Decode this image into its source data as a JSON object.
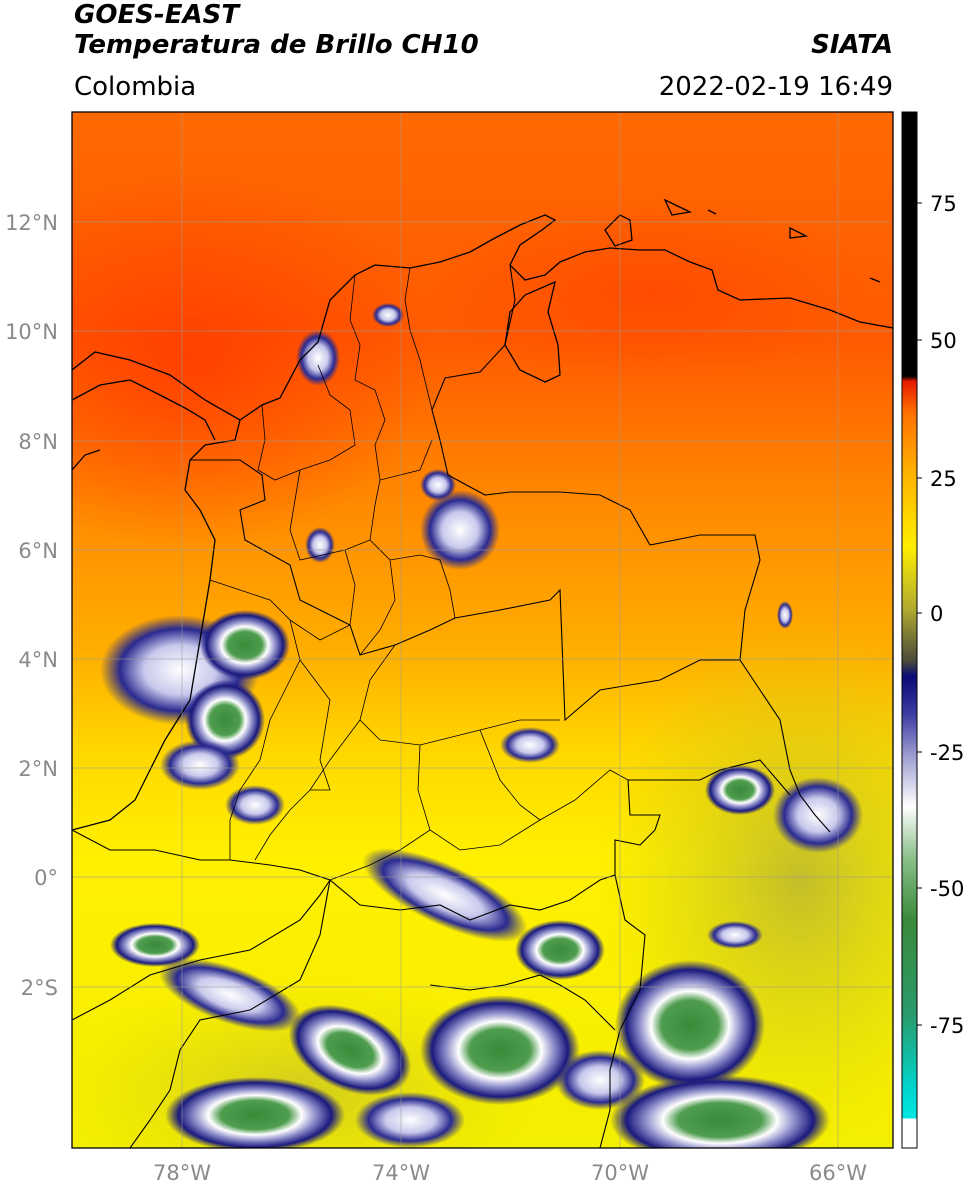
{
  "header": {
    "title_line1": "GOES-EAST",
    "title_line2": "Temperatura de Brillo CH10",
    "region": "Colombia",
    "source": "SIATA",
    "datetime": "2022-02-19 16:49"
  },
  "map": {
    "lat_ticks": [
      "12°N",
      "10°N",
      "8°N",
      "6°N",
      "4°N",
      "2°N",
      "0°",
      "2°S"
    ],
    "lon_ticks": [
      "78°W",
      "74°W",
      "70°W",
      "66°W"
    ],
    "extent": {
      "lon_min": -80,
      "lon_max": -65,
      "lat_min": -5,
      "lat_max": 14
    }
  },
  "colorbar": {
    "ticks": [
      "75",
      "50",
      "25",
      "0",
      "-25",
      "-50",
      "-75"
    ],
    "range": [
      -95,
      90
    ],
    "colors": {
      "black_top": "#000000",
      "red": "#e81a00",
      "orange": "#ff8c00",
      "yellow": "#ffee00",
      "olive": "#b8b030",
      "navy": "#1a1a7e",
      "white": "#ffffff",
      "green": "#3a8a3a",
      "cyan": "#00e5e0"
    }
  }
}
